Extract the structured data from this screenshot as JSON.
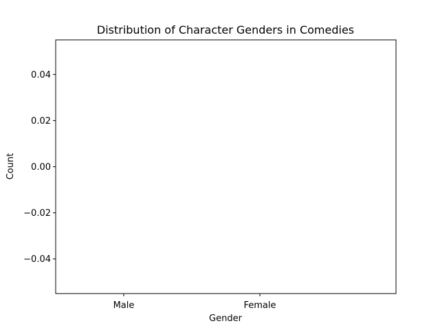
{
  "chart_data": {
    "type": "bar",
    "title": "Distribution of Character Genders in Comedies",
    "xlabel": "Gender",
    "ylabel": "Count",
    "categories": [
      "Male",
      "Female"
    ],
    "values": [
      0,
      0
    ],
    "ylim": [
      -0.055,
      0.055
    ],
    "yticks": [
      -0.04,
      -0.02,
      0.0,
      0.02,
      0.04
    ],
    "ytick_labels": [
      "−0.04",
      "−0.02",
      "0.00",
      "0.02",
      "0.04"
    ],
    "grid": false,
    "legend": "none"
  }
}
